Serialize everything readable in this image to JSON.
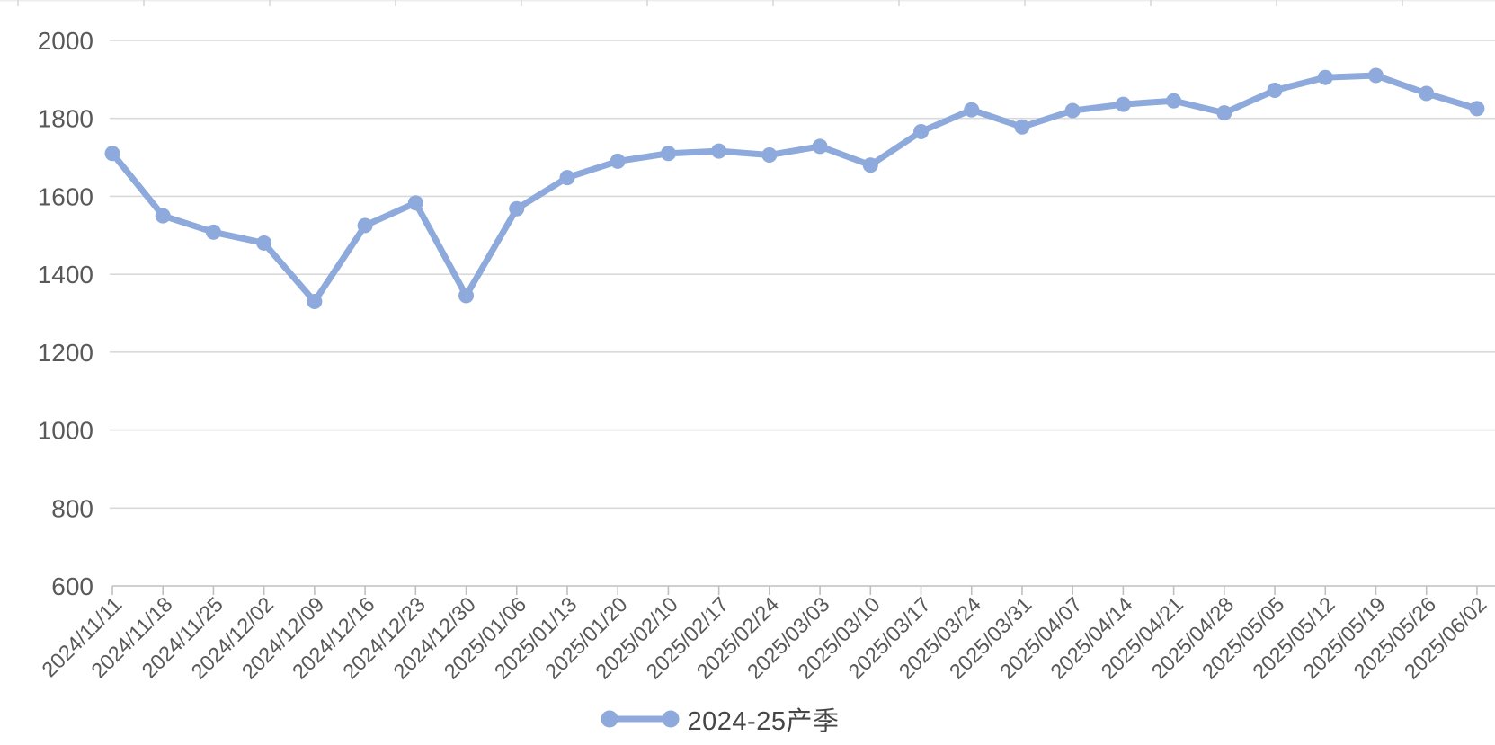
{
  "chart_data": {
    "type": "line",
    "x": [
      "2024/11/11",
      "2024/11/18",
      "2024/11/25",
      "2024/12/02",
      "2024/12/09",
      "2024/12/16",
      "2024/12/23",
      "2024/12/30",
      "2025/01/06",
      "2025/01/13",
      "2025/01/20",
      "2025/02/10",
      "2025/02/17",
      "2025/02/24",
      "2025/03/03",
      "2025/03/10",
      "2025/03/17",
      "2025/03/24",
      "2025/03/31",
      "2025/04/07",
      "2025/04/14",
      "2025/04/21",
      "2025/04/28",
      "2025/05/05",
      "2025/05/12",
      "2025/05/19",
      "2025/05/26",
      "2025/06/02"
    ],
    "series": [
      {
        "name": "2024-25产季",
        "values": [
          1710,
          1550,
          1508,
          1480,
          1330,
          1525,
          1583,
          1345,
          1568,
          1648,
          1690,
          1710,
          1716,
          1706,
          1728,
          1680,
          1766,
          1822,
          1778,
          1820,
          1836,
          1845,
          1814,
          1872,
          1905,
          1910,
          1864,
          1825
        ]
      }
    ],
    "title": "",
    "xlabel": "",
    "ylabel": "",
    "ylim": [
      600,
      2000
    ],
    "yticks": [
      600,
      800,
      1000,
      1200,
      1400,
      1600,
      1800,
      2000
    ],
    "grid": "horizontal",
    "legend_position": "bottom-center",
    "marker": "circle"
  },
  "colors": {
    "line": "#8EA9DB",
    "axis_text": "#595959",
    "gridline": "#D9D9D9",
    "axis_line": "#BFBFBF",
    "legend_text": "#464646",
    "top_ruler": "#D8D8DC",
    "background": "#FFFFFF"
  }
}
